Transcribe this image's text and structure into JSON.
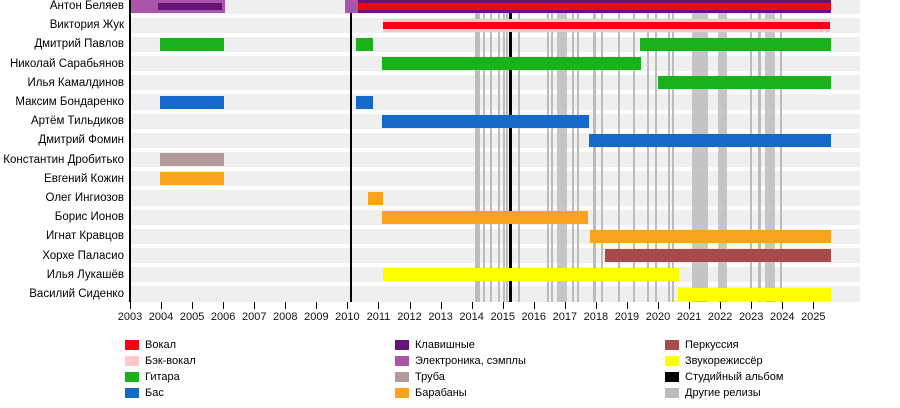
{
  "chart_data": {
    "type": "gantt",
    "title": "",
    "x_axis": {
      "start_year": 2003,
      "end_year": 2025,
      "tick_years": [
        "2003",
        "2004",
        "2005",
        "2006",
        "2007",
        "2008",
        "2009",
        "2010",
        "2011",
        "2012",
        "2013",
        "2014",
        "2015",
        "2016",
        "2017",
        "2018",
        "2019",
        "2020",
        "2021",
        "2022",
        "2023",
        "2024",
        "2025"
      ]
    },
    "roles": {
      "vocals": {
        "label": "Вокал",
        "color": "#f40019"
      },
      "backing_vocals": {
        "label": "Бэк-вокал",
        "color": "#ffc9c9"
      },
      "guitar": {
        "label": "Гитара",
        "color": "#1ab21a"
      },
      "bass": {
        "label": "Бас",
        "color": "#1569c8"
      },
      "keyboards": {
        "label": "Клавишные",
        "color": "#65157a"
      },
      "electronics": {
        "label": "Электроника, сэмплы",
        "color": "#a855aa"
      },
      "trumpet": {
        "label": "Труба",
        "color": "#b39a9a"
      },
      "drums": {
        "label": "Барабаны",
        "color": "#fba21f"
      },
      "percussion": {
        "label": "Перкуссия",
        "color": "#a94a4a"
      },
      "engineer": {
        "label": "Звукорежиссёр",
        "color": "#ffff00"
      },
      "studio_album": {
        "label": "Студийный альбом",
        "color": "#000000"
      },
      "other_releases": {
        "label": "Другие релизы",
        "color": "#bcbcbc"
      }
    },
    "legend_columns": [
      [
        "vocals",
        "backing_vocals",
        "guitar",
        "bass"
      ],
      [
        "keyboards",
        "electronics",
        "trumpet",
        "drums"
      ],
      [
        "percussion",
        "engineer",
        "studio_album",
        "other_releases"
      ]
    ],
    "members": [
      {
        "name": "Антон Беляев",
        "segments": [
          {
            "from": 2003.0,
            "to": 2006.05,
            "bands": [
              {
                "role": "electronics",
                "band": "full"
              },
              {
                "role": "keyboards",
                "band": "middle",
                "from": 2003.9,
                "to": 2005.95
              }
            ]
          },
          {
            "from": 2009.92,
            "to": 2025.56,
            "bands": [
              {
                "role": "keyboards",
                "band": "full"
              },
              {
                "role": "electronics",
                "band": "full",
                "from": 2009.92,
                "to": 2010.35
              },
              {
                "role": "vocals",
                "band": "middle",
                "from": 2010.35
              }
            ]
          }
        ]
      },
      {
        "name": "Виктория Жук",
        "segments": [
          {
            "from": 2011.15,
            "to": 2025.53,
            "bands": [
              {
                "role": "backing_vocals",
                "band": "full"
              },
              {
                "role": "vocals",
                "band": "middle"
              }
            ]
          }
        ]
      },
      {
        "name": "Дмитрий Павлов",
        "segments": [
          {
            "from": 2003.97,
            "to": 2006.03,
            "bands": [
              {
                "role": "guitar",
                "band": "full"
              }
            ]
          },
          {
            "from": 2010.28,
            "to": 2010.82,
            "bands": [
              {
                "role": "guitar",
                "band": "full"
              }
            ]
          },
          {
            "from": 2019.42,
            "to": 2025.56,
            "bands": [
              {
                "role": "guitar",
                "band": "full"
              }
            ]
          }
        ]
      },
      {
        "name": "Николай Сарабьянов",
        "segments": [
          {
            "from": 2011.11,
            "to": 2019.45,
            "bands": [
              {
                "role": "guitar",
                "band": "full"
              }
            ]
          }
        ]
      },
      {
        "name": "Илья Камалдинов",
        "segments": [
          {
            "from": 2020.0,
            "to": 2025.56,
            "bands": [
              {
                "role": "guitar",
                "band": "full"
              }
            ]
          }
        ]
      },
      {
        "name": "Максим Бондаренко",
        "segments": [
          {
            "from": 2003.97,
            "to": 2006.03,
            "bands": [
              {
                "role": "bass",
                "band": "full"
              }
            ]
          },
          {
            "from": 2010.28,
            "to": 2010.82,
            "bands": [
              {
                "role": "bass",
                "band": "full"
              }
            ]
          }
        ]
      },
      {
        "name": "Артём Тильдиков",
        "segments": [
          {
            "from": 2011.11,
            "to": 2017.78,
            "bands": [
              {
                "role": "bass",
                "band": "full"
              }
            ]
          }
        ]
      },
      {
        "name": "Дмитрий Фомин",
        "segments": [
          {
            "from": 2017.78,
            "to": 2025.56,
            "bands": [
              {
                "role": "bass",
                "band": "full"
              }
            ]
          }
        ]
      },
      {
        "name": "Константин Дробитько",
        "segments": [
          {
            "from": 2003.97,
            "to": 2006.03,
            "bands": [
              {
                "role": "trumpet",
                "band": "full"
              }
            ]
          }
        ]
      },
      {
        "name": "Евгений Кожин",
        "segments": [
          {
            "from": 2003.97,
            "to": 2006.03,
            "bands": [
              {
                "role": "drums",
                "band": "full"
              }
            ]
          }
        ]
      },
      {
        "name": "Олег Ингиозов",
        "segments": [
          {
            "from": 2010.66,
            "to": 2011.15,
            "bands": [
              {
                "role": "drums",
                "band": "full"
              }
            ]
          }
        ]
      },
      {
        "name": "Борис Ионов",
        "segments": [
          {
            "from": 2011.11,
            "to": 2017.74,
            "bands": [
              {
                "role": "drums",
                "band": "full"
              }
            ]
          }
        ]
      },
      {
        "name": "Игнат Кравцов",
        "segments": [
          {
            "from": 2017.81,
            "to": 2025.56,
            "bands": [
              {
                "role": "drums",
                "band": "full"
              }
            ]
          }
        ]
      },
      {
        "name": "Хорхе Паласио",
        "segments": [
          {
            "from": 2018.29,
            "to": 2025.56,
            "bands": [
              {
                "role": "percussion",
                "band": "full"
              }
            ]
          }
        ]
      },
      {
        "name": "Илья Лукашёв",
        "segments": [
          {
            "from": 2011.15,
            "to": 2020.67,
            "bands": [
              {
                "role": "engineer",
                "band": "full"
              }
            ]
          }
        ]
      },
      {
        "name": "Василий Сиденко",
        "segments": [
          {
            "from": 2020.64,
            "to": 2025.56,
            "bands": [
              {
                "role": "engineer",
                "band": "full"
              }
            ]
          }
        ]
      }
    ],
    "studio_albums": [
      2010.11,
      2015.25
    ],
    "other_releases": [
      [
        2014.12,
        2014.19
      ],
      [
        2014.22,
        2014.28
      ],
      [
        2014.36,
        2014.43
      ],
      [
        2014.59,
        2014.65
      ],
      [
        2014.85,
        2014.91
      ],
      [
        2015.01,
        2015.07
      ],
      [
        2015.09,
        2015.15
      ],
      [
        2015.49,
        2015.56
      ],
      [
        2016.42,
        2016.49
      ],
      [
        2016.55,
        2016.62
      ],
      [
        2016.75,
        2017.07
      ],
      [
        2017.23,
        2017.29
      ],
      [
        2017.39,
        2017.45
      ],
      [
        2017.91,
        2018.0
      ],
      [
        2018.16,
        2018.23
      ],
      [
        2018.71,
        2018.78
      ],
      [
        2019.19,
        2019.26
      ],
      [
        2019.64,
        2019.71
      ],
      [
        2019.9,
        2019.96
      ],
      [
        2020.32,
        2020.38
      ],
      [
        2020.45,
        2020.51
      ],
      [
        2021.09,
        2021.61
      ],
      [
        2021.93,
        2022.22
      ],
      [
        2022.96,
        2023.02
      ],
      [
        2023.22,
        2023.31
      ],
      [
        2023.44,
        2023.77
      ],
      [
        2023.93,
        2023.99
      ]
    ]
  }
}
